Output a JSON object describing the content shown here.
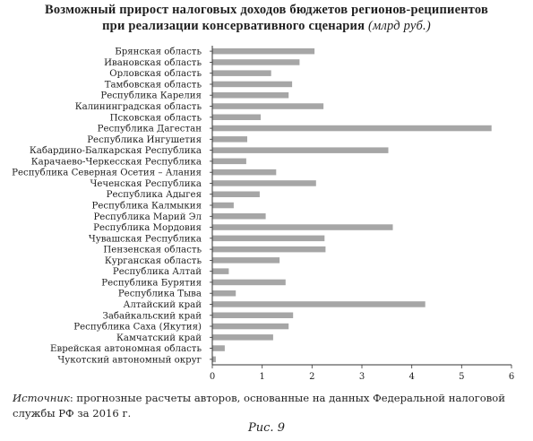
{
  "title_line1": "Возможный прирост налоговых доходов бюджетов регионов-реципиентов",
  "title_line2": "при реализации консервативного сценария",
  "title_unit": "(млрд руб.)",
  "source_lead": "Источник",
  "source_text": ": прогнозные расчеты авторов, основанные на данных Федеральной налоговой службы РФ за 2016 г.",
  "caption": "Рис. 9",
  "chart_data": {
    "type": "bar",
    "orientation": "horizontal",
    "title": "Возможный прирост налоговых доходов бюджетов регионов-реципиентов при реализации консервативного сценария (млрд руб.)",
    "categories": [
      "Брянская область",
      "Ивановская область",
      "Орловская область",
      "Тамбовская область",
      "Республика Карелия",
      "Калининградская область",
      "Псковская область",
      "Республика Дагестан",
      "Республика Ингушетия",
      "Кабардино-Балкарская Республика",
      "Карачаево-Черкесская Республика",
      "Республика Северная Осетия – Алания",
      "Чеченская Республика",
      "Республика Адыгея",
      "Республика Калмыкия",
      "Республика Марий Эл",
      "Республика Мордовия",
      "Чувашская Республика",
      "Пензенская область",
      "Курганская область",
      "Республика Алтай",
      "Республика Бурятия",
      "Республика Тыва",
      "Алтайский край",
      "Забайкальский край",
      "Республика Саха (Якутия)",
      "Камчатский край",
      "Еврейская автономная область",
      "Чукотский автономный округ"
    ],
    "values": [
      2.05,
      1.75,
      1.18,
      1.6,
      1.53,
      2.23,
      0.97,
      5.6,
      0.7,
      3.53,
      0.68,
      1.28,
      2.08,
      0.95,
      0.43,
      1.07,
      3.62,
      2.25,
      2.27,
      1.35,
      0.33,
      1.47,
      0.47,
      4.27,
      1.62,
      1.53,
      1.22,
      0.25,
      0.07
    ],
    "xlim": [
      0,
      6
    ],
    "xticks": [
      "0",
      "1",
      "2",
      "3",
      "4",
      "5",
      "6"
    ],
    "bar_color": "#a6a6a6",
    "grid": false,
    "legend": false
  }
}
